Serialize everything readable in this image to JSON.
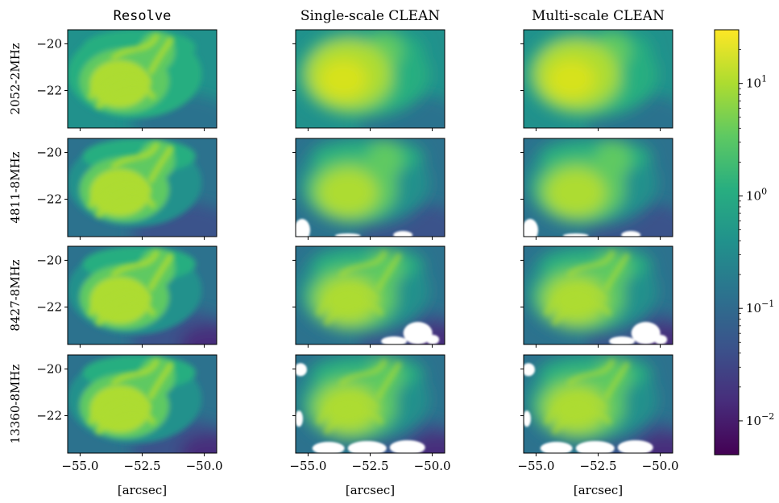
{
  "chart_data": {
    "type": "heatmap",
    "layout": "4x3 grid of image panels with shared colorbar",
    "column_titles": [
      "Resolve",
      "Single-scale CLEAN",
      "Multi-scale CLEAN"
    ],
    "row_labels": [
      "2052-2MHz",
      "4811-8MHz",
      "8427-8MHz",
      "13360-8MHz"
    ],
    "xlabel": "[arcsec]",
    "ylabel": "",
    "x_ticks": [
      "−55.0",
      "−52.5",
      "−50.0"
    ],
    "x_tick_values": [
      -55.0,
      -52.5,
      -50.0
    ],
    "y_ticks": [
      "−20",
      "−22"
    ],
    "y_tick_values": [
      -20,
      -22
    ],
    "xlim": [
      -55.5,
      -49.5
    ],
    "ylim": [
      -23.6,
      -19.4
    ],
    "colorbar": {
      "scale": "log",
      "colormap": "viridis",
      "range": [
        0.005,
        30
      ],
      "ticks": [
        {
          "value": 10,
          "base": "10",
          "exp": "1"
        },
        {
          "value": 1,
          "base": "10",
          "exp": "0"
        },
        {
          "value": 0.1,
          "base": "10",
          "exp": "−1"
        },
        {
          "value": 0.01,
          "base": "10",
          "exp": "−2"
        }
      ]
    },
    "blank_regions": "Single-scale and multi-scale CLEAN panels at 4811-8MHz, 8427-8MHz and 13360-8MHz contain white (masked) patches along the bottom edge"
  }
}
